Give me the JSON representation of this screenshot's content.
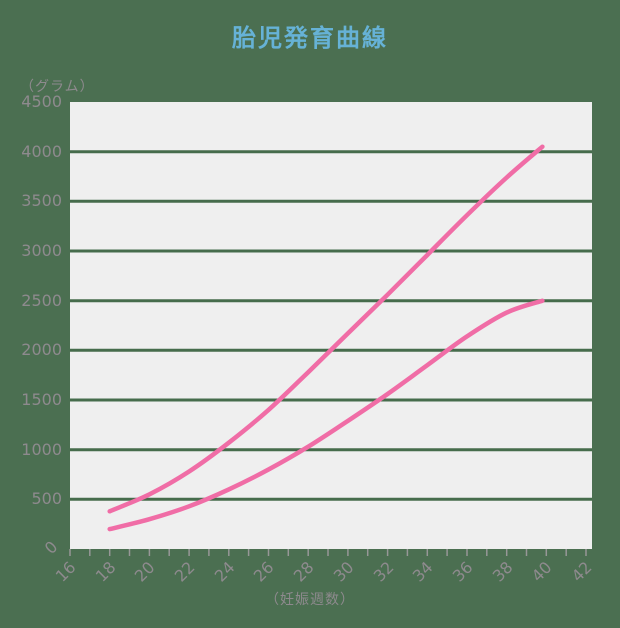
{
  "page": {
    "background_color": "#4b6f51"
  },
  "chart_data": {
    "type": "line",
    "title": "胎児発育曲線",
    "y_unit_label": "（グラム）",
    "x_unit_label": "（妊娠週数）",
    "xlabel": "妊娠週数",
    "ylabel": "グラム",
    "xlim": [
      16,
      42.3
    ],
    "ylim": [
      0,
      4500
    ],
    "y_ticks": [
      0,
      500,
      1000,
      1500,
      2000,
      2500,
      3000,
      3500,
      4000,
      4500
    ],
    "gridline_values": [
      500,
      1000,
      1500,
      2000,
      2500,
      3000,
      3500,
      4000
    ],
    "x_labels": [
      16,
      18,
      20,
      22,
      24,
      26,
      28,
      30,
      32,
      34,
      36,
      38,
      40,
      42
    ],
    "x_minor_tick_step": 1,
    "grid": true,
    "legend_position": "none",
    "colors": {
      "title": "#66b2d6",
      "plot_background": "#efefef",
      "gridline": "#466c4c",
      "axis_label": "#8e8a8e",
      "tick": "#979797",
      "series": "#f06da6"
    },
    "x": [
      18,
      20,
      22,
      24,
      26,
      28,
      30,
      32,
      34,
      36,
      38,
      39.8
    ],
    "series": [
      {
        "name": "upper-limit-curve",
        "values": [
          380,
          550,
          780,
          1070,
          1400,
          1780,
          2170,
          2560,
          2960,
          3360,
          3740,
          4050
        ]
      },
      {
        "name": "lower-limit-curve",
        "values": [
          200,
          300,
          430,
          600,
          800,
          1030,
          1290,
          1560,
          1850,
          2140,
          2380,
          2500
        ]
      }
    ]
  }
}
